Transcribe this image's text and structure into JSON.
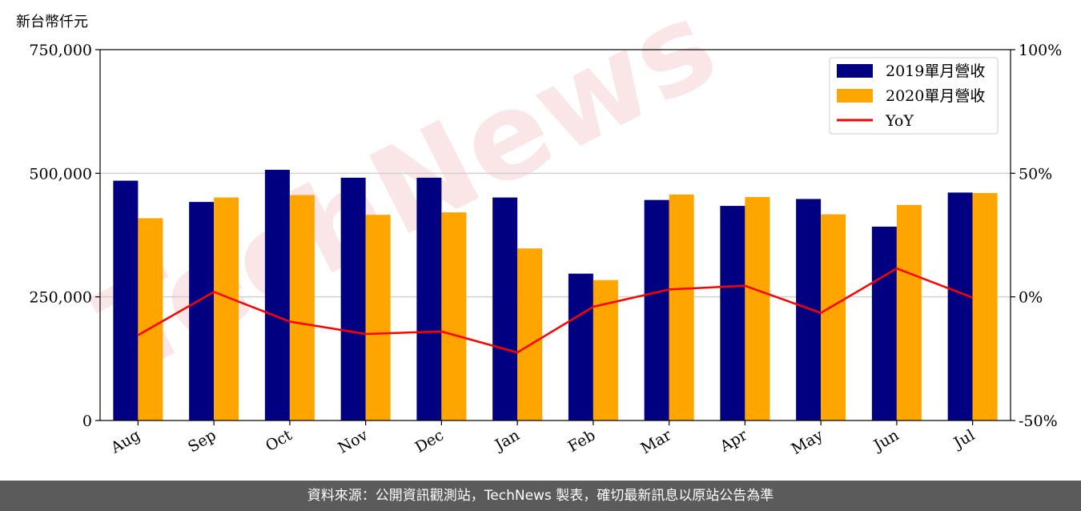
{
  "chart_data": {
    "type": "bar",
    "unit_label": "新台幣仟元",
    "categories": [
      "Aug",
      "Sep",
      "Oct",
      "Nov",
      "Dec",
      "Jan",
      "Feb",
      "Mar",
      "Apr",
      "May",
      "Jun",
      "Jul"
    ],
    "series": [
      {
        "name": "2019單月營收",
        "type": "bar",
        "axis": "left",
        "color": "#000080",
        "values": [
          485000,
          442000,
          507000,
          491000,
          491000,
          451000,
          297000,
          446000,
          434000,
          448000,
          392000,
          461000
        ]
      },
      {
        "name": "2020單月營收",
        "type": "bar",
        "axis": "left",
        "color": "#ffa500",
        "values": [
          409000,
          451000,
          456000,
          416000,
          421000,
          348000,
          284000,
          457000,
          452000,
          417000,
          436000,
          460000
        ]
      },
      {
        "name": "YoY",
        "type": "line",
        "axis": "right",
        "color": "#ff0000",
        "values": [
          -15.5,
          2.0,
          -10.0,
          -15.0,
          -14.0,
          -22.5,
          -4.0,
          3.0,
          4.5,
          -6.5,
          11.5,
          -0.3
        ]
      }
    ],
    "y_left": {
      "min": 0,
      "max": 750000,
      "ticks": [
        0,
        250000,
        500000,
        750000
      ],
      "tick_labels": [
        "0",
        "250,000",
        "500,000",
        "750,000"
      ]
    },
    "y_right": {
      "min": -50,
      "max": 100,
      "ticks": [
        -50,
        0,
        50,
        100
      ],
      "tick_labels": [
        "-50%",
        "0%",
        "50%",
        "100%"
      ]
    },
    "grid": "horizontal",
    "legend_position": "top-right"
  },
  "watermark": "TechNews",
  "footer": {
    "text": "資料來源：公開資訊觀測站，TechNews 製表，確切最新訊息以原站公告為準"
  }
}
